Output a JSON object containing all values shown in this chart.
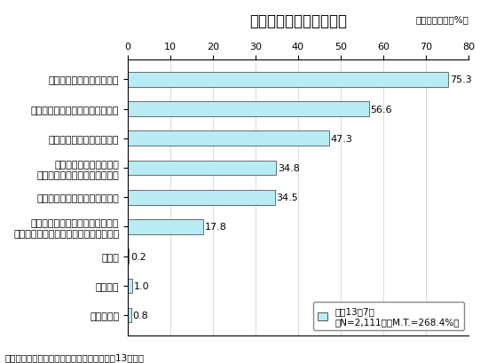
{
  "title": "水と関わる豊かな暮らし",
  "subtitle": "（複数回答）（%）",
  "categories": [
    "わからない",
    "特にない",
    "その他",
    "ウォータースポーツや魚釣り等の\n水辺レクリエーションが楽しめる暮らし",
    "洪水の心配のない安全な暮らし",
    "身近に潤いとやすらぎを\n与えてくれる水辺がある暮らし",
    "おいしい水が飲める暮らし",
    "いつでも水が豊富に使える暮らし",
    "安心して水が飲める暮らし"
  ],
  "values": [
    0.8,
    1.0,
    0.2,
    17.8,
    34.5,
    34.8,
    47.3,
    56.6,
    75.3
  ],
  "bar_color": "#b8ecf4",
  "bar_edge_color": "#555555",
  "xlim": [
    0,
    80
  ],
  "xticks": [
    0,
    10,
    20,
    30,
    40,
    50,
    60,
    70,
    80
  ],
  "legend_label_line1": "平成13年7月",
  "legend_label_line2": "（N=2,111人、M.T.=268.4%）",
  "footnote": "（注）内閣府「水に関する世論調査」（平成13年度）",
  "title_fontsize": 12,
  "label_fontsize": 8,
  "tick_fontsize": 8,
  "value_fontsize": 8,
  "subtitle_fontsize": 7.5,
  "footnote_fontsize": 7.5,
  "legend_fontsize": 7.5,
  "bar_height": 0.5,
  "fig_width": 5.5,
  "fig_height": 4.1,
  "dpi": 100
}
